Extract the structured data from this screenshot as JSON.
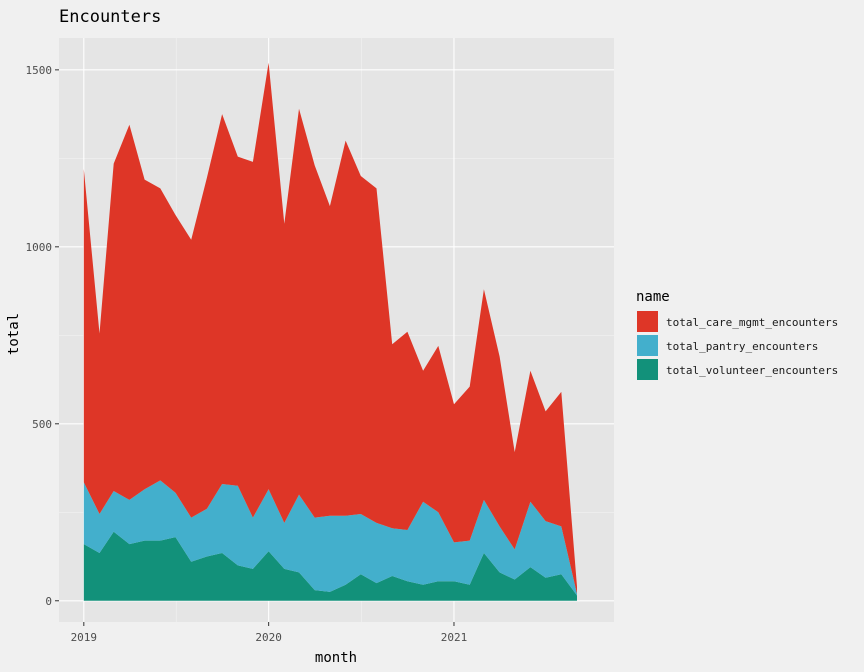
{
  "chart_data": {
    "type": "area",
    "stacked": true,
    "title": "Encounters",
    "xlabel": "month",
    "ylabel": "total",
    "legend_title": "name",
    "legend_position": "right",
    "grid": true,
    "x_ticks": [
      "2019",
      "2020",
      "2021"
    ],
    "y_ticks": [
      0,
      500,
      1000,
      1500
    ],
    "ylim": [
      -60,
      1590
    ],
    "xlim": [
      "2018-11-13",
      "2021-11-13"
    ],
    "x": [
      "2019-01",
      "2019-02",
      "2019-03",
      "2019-04",
      "2019-05",
      "2019-06",
      "2019-07",
      "2019-08",
      "2019-09",
      "2019-10",
      "2019-11",
      "2019-12",
      "2020-01",
      "2020-02",
      "2020-03",
      "2020-04",
      "2020-05",
      "2020-06",
      "2020-07",
      "2020-08",
      "2020-09",
      "2020-10",
      "2020-11",
      "2020-12",
      "2021-01",
      "2021-02",
      "2021-03",
      "2021-04",
      "2021-05",
      "2021-06",
      "2021-07",
      "2021-08",
      "2021-09"
    ],
    "series": [
      {
        "name": "total_volunteer_encounters",
        "color": "#12917a",
        "values": [
          160,
          135,
          195,
          160,
          170,
          170,
          180,
          110,
          125,
          135,
          100,
          90,
          140,
          90,
          80,
          30,
          25,
          45,
          75,
          50,
          70,
          55,
          45,
          55,
          55,
          45,
          135,
          80,
          60,
          95,
          65,
          75,
          15
        ]
      },
      {
        "name": "total_pantry_encounters",
        "color": "#43afcc",
        "values": [
          175,
          110,
          115,
          125,
          145,
          170,
          125,
          125,
          135,
          195,
          225,
          145,
          175,
          130,
          220,
          205,
          215,
          195,
          170,
          170,
          135,
          145,
          235,
          195,
          110,
          125,
          150,
          130,
          85,
          185,
          160,
          135,
          5
        ]
      },
      {
        "name": "total_care_mgmt_encounters",
        "color": "#de3627",
        "values": [
          885,
          510,
          925,
          1060,
          875,
          825,
          785,
          785,
          935,
          1045,
          930,
          1005,
          1205,
          845,
          1090,
          995,
          875,
          1060,
          955,
          945,
          520,
          560,
          370,
          470,
          390,
          435,
          595,
          480,
          275,
          370,
          310,
          380,
          20
        ]
      }
    ]
  }
}
